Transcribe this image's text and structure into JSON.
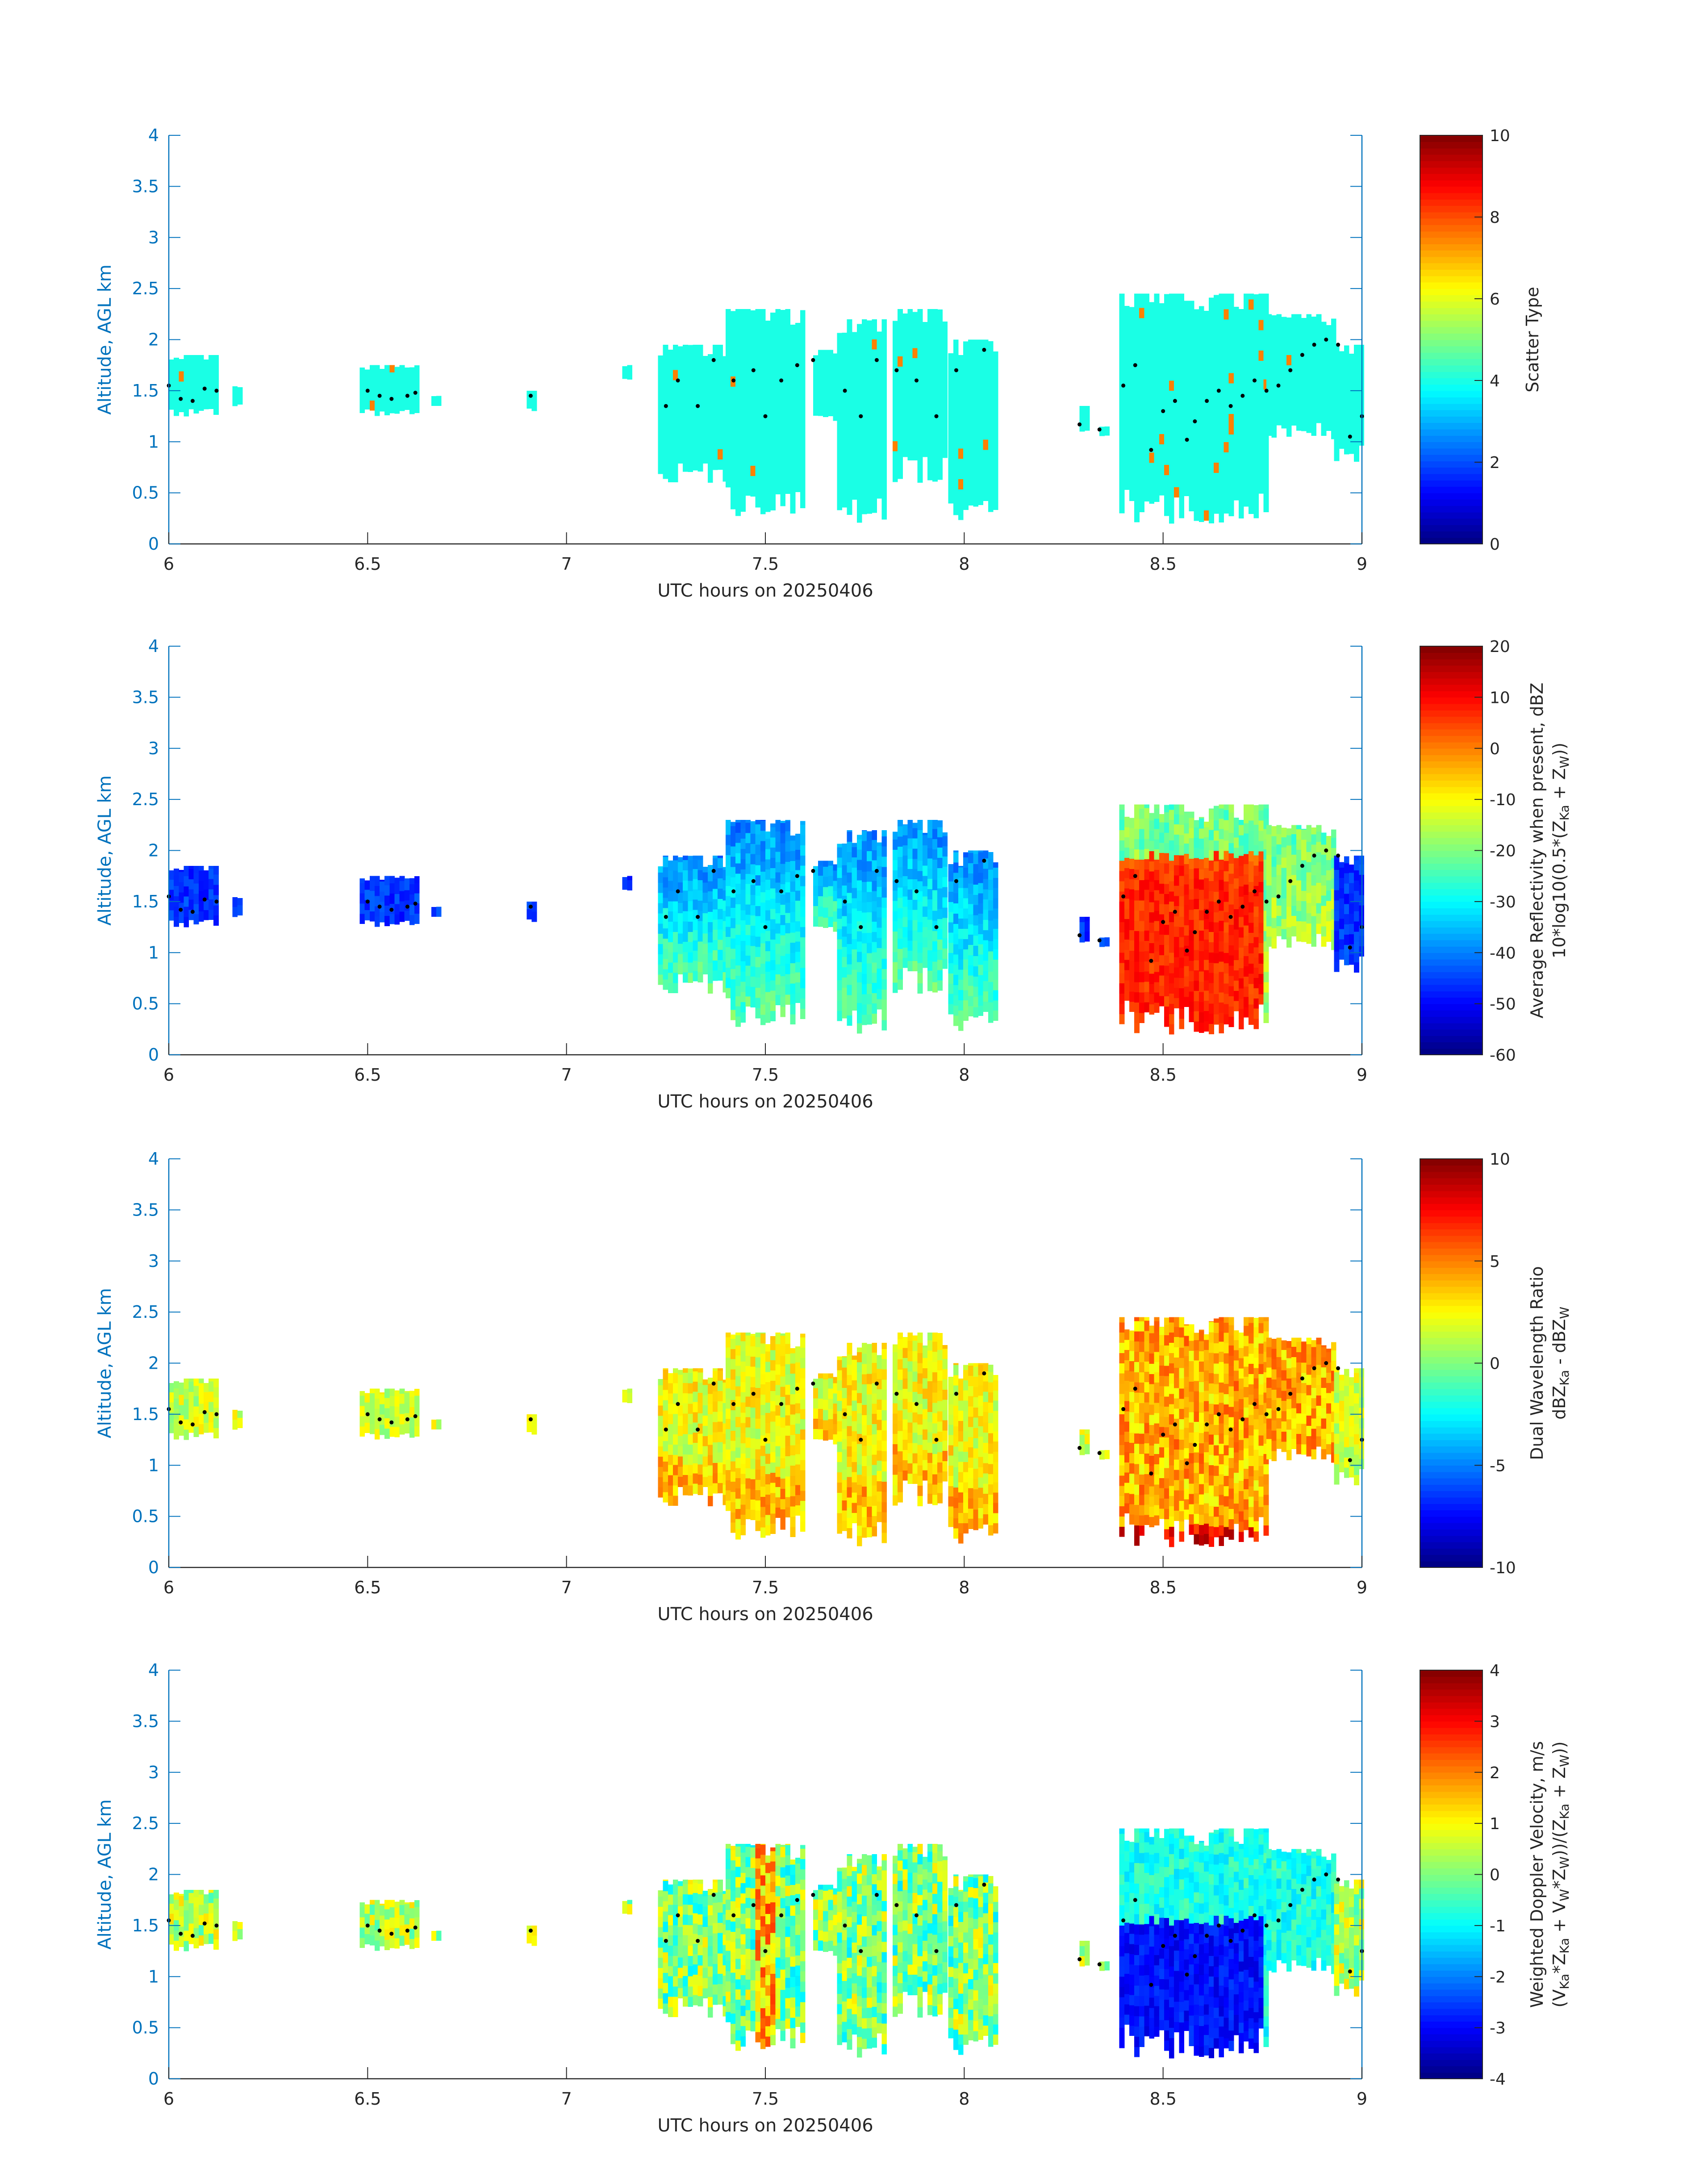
{
  "figure": {
    "xlabel": "UTC hours on 20250406",
    "ylabel": "Altitude, AGL km"
  },
  "chart_data": [
    {
      "type": "heatmap",
      "variable": "scatter_type",
      "xlabel": "UTC hours on 20250406",
      "ylabel": "Altitude, AGL km",
      "xlim": [
        6,
        9
      ],
      "ylim": [
        0,
        4
      ],
      "xticks": [
        "6",
        "6.5",
        "7",
        "7.5",
        "8",
        "8.5",
        "9"
      ],
      "yticks": [
        "0",
        "0.5",
        "1",
        "1.5",
        "2",
        "2.5",
        "3",
        "3.5",
        "4"
      ],
      "colorbar": {
        "label": "Scatter Type",
        "clim": [
          0,
          10
        ],
        "ticks": [
          "0",
          "2",
          "4",
          "6",
          "8",
          "10"
        ]
      },
      "colormap": "jet"
    },
    {
      "type": "heatmap",
      "variable": "reflectivity",
      "xlabel": "UTC hours on 20250406",
      "ylabel": "Altitude, AGL km",
      "xlim": [
        6,
        9
      ],
      "ylim": [
        0,
        4
      ],
      "xticks": [
        "6",
        "6.5",
        "7",
        "7.5",
        "8",
        "8.5",
        "9"
      ],
      "yticks": [
        "0",
        "0.5",
        "1",
        "1.5",
        "2",
        "2.5",
        "3",
        "3.5",
        "4"
      ],
      "colorbar": {
        "label_line1": "Average Reflectivity when present, dBZ",
        "label_line2": "10*log10(0.5*(Z",
        "sub_ka": "Ka",
        "plus": " + Z",
        "sub_w": "W",
        "close": "))",
        "clim": [
          -60,
          20
        ],
        "ticks": [
          "-60",
          "-50",
          "-40",
          "-30",
          "-20",
          "-10",
          "0",
          "10",
          "20"
        ]
      },
      "colormap": "jet"
    },
    {
      "type": "heatmap",
      "variable": "dual_wavelength_ratio",
      "xlabel": "UTC hours on 20250406",
      "ylabel": "Altitude, AGL km",
      "xlim": [
        6,
        9
      ],
      "ylim": [
        0,
        4
      ],
      "xticks": [
        "6",
        "6.5",
        "7",
        "7.5",
        "8",
        "8.5",
        "9"
      ],
      "yticks": [
        "0",
        "0.5",
        "1",
        "1.5",
        "2",
        "2.5",
        "3",
        "3.5",
        "4"
      ],
      "colorbar": {
        "label_line1": "Dual Wavelength Ratio",
        "label_line2a": "dBZ",
        "sub_ka": "Ka",
        "label_line2b": " - dBZ",
        "sub_w": "W",
        "clim": [
          -10,
          10
        ],
        "ticks": [
          "-10",
          "-5",
          "0",
          "5",
          "10"
        ]
      },
      "colormap": "jet"
    },
    {
      "type": "heatmap",
      "variable": "weighted_doppler_velocity",
      "xlabel": "UTC hours on 20250406",
      "ylabel": "Altitude, AGL km",
      "xlim": [
        6,
        9
      ],
      "ylim": [
        0,
        4
      ],
      "xticks": [
        "6",
        "6.5",
        "7",
        "7.5",
        "8",
        "8.5",
        "9"
      ],
      "yticks": [
        "0",
        "0.5",
        "1",
        "1.5",
        "2",
        "2.5",
        "3",
        "3.5",
        "4"
      ],
      "colorbar": {
        "label_line1": "Weighted Doppler Velocity, m/s",
        "label_line2": "(V",
        "sub_ka": "Ka",
        "t1": "*Z",
        "t2": " + V",
        "sub_w": "W",
        "t3": "*Z",
        "t4": "))/(Z",
        "t5": " + Z",
        "t6": "))",
        "clim": [
          -4,
          4
        ],
        "ticks": [
          "-4",
          "-3",
          "-2",
          "-1",
          "0",
          "1",
          "2",
          "3",
          "4"
        ]
      },
      "colormap": "jet"
    }
  ],
  "cloud_segments": [
    {
      "t0": 6.0,
      "t1": 6.12,
      "base": 1.25,
      "top": 1.85,
      "kind": "low"
    },
    {
      "t0": 6.16,
      "t1": 6.19,
      "base": 1.35,
      "top": 1.55,
      "kind": "low"
    },
    {
      "t0": 6.48,
      "t1": 6.63,
      "base": 1.25,
      "top": 1.75,
      "kind": "low"
    },
    {
      "t0": 6.66,
      "t1": 6.68,
      "base": 1.35,
      "top": 1.45,
      "kind": "low"
    },
    {
      "t0": 6.9,
      "t1": 6.92,
      "base": 1.3,
      "top": 1.5,
      "kind": "low"
    },
    {
      "t0": 7.14,
      "t1": 7.17,
      "base": 1.6,
      "top": 1.75,
      "kind": "low"
    },
    {
      "t0": 7.23,
      "t1": 7.4,
      "base": 0.6,
      "top": 1.95,
      "kind": "mid"
    },
    {
      "t0": 7.4,
      "t1": 7.6,
      "base": 0.25,
      "top": 2.3,
      "kind": "mid"
    },
    {
      "t0": 7.62,
      "t1": 7.68,
      "base": 1.2,
      "top": 1.9,
      "kind": "mid"
    },
    {
      "t0": 7.68,
      "t1": 7.8,
      "base": 0.2,
      "top": 2.2,
      "kind": "mid"
    },
    {
      "t0": 7.82,
      "t1": 7.96,
      "base": 0.6,
      "top": 2.3,
      "kind": "mid"
    },
    {
      "t0": 7.96,
      "t1": 8.08,
      "base": 0.2,
      "top": 2.0,
      "kind": "mid"
    },
    {
      "t0": 8.29,
      "t1": 8.31,
      "base": 1.1,
      "top": 1.35,
      "kind": "low"
    },
    {
      "t0": 8.34,
      "t1": 8.36,
      "base": 1.05,
      "top": 1.15,
      "kind": "low"
    },
    {
      "t0": 8.39,
      "t1": 8.76,
      "base": 0.2,
      "top": 2.45,
      "kind": "deep"
    },
    {
      "t0": 8.76,
      "t1": 8.93,
      "base": 1.0,
      "top": 2.25,
      "kind": "deep"
    },
    {
      "t0": 8.93,
      "t1": 9.0,
      "base": 0.8,
      "top": 1.95,
      "kind": "low"
    }
  ],
  "dots": [
    [
      6.0,
      1.55
    ],
    [
      6.03,
      1.42
    ],
    [
      6.06,
      1.4
    ],
    [
      6.09,
      1.52
    ],
    [
      6.12,
      1.5
    ],
    [
      6.5,
      1.5
    ],
    [
      6.53,
      1.45
    ],
    [
      6.56,
      1.42
    ],
    [
      6.6,
      1.45
    ],
    [
      6.62,
      1.48
    ],
    [
      6.91,
      1.45
    ],
    [
      7.25,
      1.35
    ],
    [
      7.28,
      1.6
    ],
    [
      7.33,
      1.35
    ],
    [
      7.37,
      1.8
    ],
    [
      7.42,
      1.6
    ],
    [
      7.47,
      1.7
    ],
    [
      7.5,
      1.25
    ],
    [
      7.54,
      1.6
    ],
    [
      7.58,
      1.75
    ],
    [
      7.62,
      1.8
    ],
    [
      7.7,
      1.5
    ],
    [
      7.74,
      1.25
    ],
    [
      7.78,
      1.8
    ],
    [
      7.83,
      1.7
    ],
    [
      7.88,
      1.6
    ],
    [
      7.93,
      1.25
    ],
    [
      7.98,
      1.7
    ],
    [
      8.05,
      1.9
    ],
    [
      8.29,
      1.17
    ],
    [
      8.34,
      1.12
    ],
    [
      8.4,
      1.55
    ],
    [
      8.43,
      1.75
    ],
    [
      8.47,
      0.92
    ],
    [
      8.5,
      1.3
    ],
    [
      8.53,
      1.4
    ],
    [
      8.56,
      1.02
    ],
    [
      8.58,
      1.2
    ],
    [
      8.61,
      1.4
    ],
    [
      8.64,
      1.5
    ],
    [
      8.67,
      1.35
    ],
    [
      8.7,
      1.45
    ],
    [
      8.73,
      1.6
    ],
    [
      8.76,
      1.5
    ],
    [
      8.79,
      1.55
    ],
    [
      8.82,
      1.7
    ],
    [
      8.85,
      1.85
    ],
    [
      8.88,
      1.95
    ],
    [
      8.91,
      2.0
    ],
    [
      8.94,
      1.95
    ],
    [
      8.97,
      1.05
    ],
    [
      9.0,
      1.25
    ]
  ]
}
